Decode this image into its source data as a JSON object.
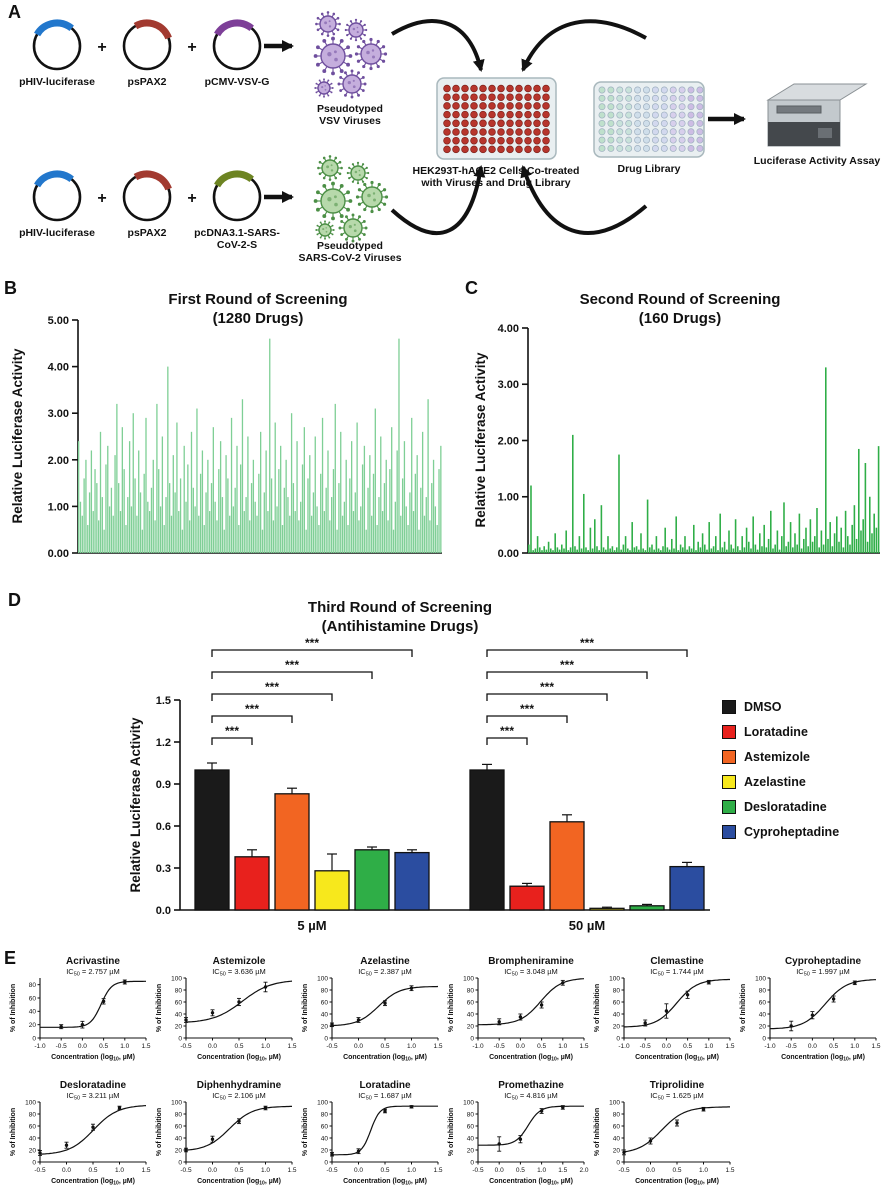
{
  "panels": {
    "a": "A",
    "b": "B",
    "c": "C",
    "d": "D",
    "e": "E"
  },
  "panelA": {
    "plasmid_hiv": "pHIV-luciferase",
    "plasmid_pspax2": "psPAX2",
    "plasmid_vsvg": "pCMV-VSV-G",
    "plasmid_spike_line1": "pcDNA3.1-SARS-",
    "plasmid_spike_line2": "CoV-2-S",
    "plus": "+",
    "vsv_label_line1": "Pseudotyped",
    "vsv_label_line2": "VSV Viruses",
    "sars_label_line1": "Pseudotyped",
    "sars_label_line2": "SARS-CoV-2 Viruses",
    "cells_label_line1": "HEK293T-hACE2 Cells Co-treated",
    "cells_label_line2": "with Viruses and Drug Library",
    "drug_library_label": "Drug Library",
    "assay_label": "Luciferase Activity Assay",
    "colors": {
      "hiv_arc": "#2277cc",
      "pspax2_arc": "#a23a30",
      "vsvg_arc": "#7d3f98",
      "spike_arc": "#6d8422",
      "vsv_virus_fill": "#c5aedd",
      "vsv_virus_stroke": "#6f4f9e",
      "sars_virus_fill": "#b7d9ab",
      "sars_virus_stroke": "#4c8f46",
      "well_fill": "#b7352c",
      "drug_palette": [
        "#bfe0cc",
        "#bfe0cc",
        "#c8e2da",
        "#c8e2da",
        "#cfdeea",
        "#cfdeea",
        "#d2d8ee",
        "#d2d8ee",
        "#d7cfec",
        "#d7cfec",
        "#cdbde4",
        "#cdbde4"
      ]
    }
  },
  "chart_data": [
    {
      "id": "first-round-screening",
      "type": "bar",
      "title": "First Round of Screening",
      "subtitle": "(1280 Drugs)",
      "ylabel": "Relative Luciferase Activity",
      "ylim": [
        0,
        5
      ],
      "yticks": [
        "0.00",
        "1.00",
        "2.00",
        "3.00",
        "4.00",
        "5.00"
      ],
      "bar_color": "#7fcf96",
      "n_drugs": 1280,
      "values": [
        2.4,
        1.1,
        0.8,
        1.6,
        2.0,
        0.6,
        1.3,
        2.2,
        0.9,
        1.8,
        1.5,
        0.7,
        2.6,
        1.2,
        0.5,
        1.9,
        2.3,
        1.0,
        1.4,
        0.8,
        2.1,
        3.2,
        1.5,
        0.9,
        2.7,
        1.8,
        0.6,
        1.2,
        2.4,
        1.0,
        3.0,
        1.6,
        0.8,
        2.2,
        1.3,
        0.5,
        1.7,
        2.9,
        1.1,
        0.9,
        1.4,
        2.0,
        0.7,
        3.2,
        1.8,
        1.0,
        2.5,
        0.6,
        1.2,
        4.0,
        1.5,
        0.8,
        2.1,
        1.3,
        2.8,
        0.9,
        1.6,
        0.5,
        2.3,
        1.1,
        1.9,
        0.7,
        2.6,
        1.4,
        1.0,
        3.1,
        0.8,
        1.7,
        2.2,
        0.6,
        1.3,
        2.0,
        0.9,
        1.5,
        2.7,
        1.1,
        0.7,
        1.8,
        2.4,
        1.2,
        0.5,
        2.1,
        1.6,
        0.8,
        2.9,
        1.0,
        1.4,
        2.3,
        0.6,
        1.9,
        3.3,
        0.9,
        1.2,
        2.5,
        0.7,
        1.5,
        2.0,
        1.1,
        0.8,
        1.7,
        2.6,
        0.5,
        1.3,
        2.2,
        0.9,
        4.6,
        1.6,
        0.7,
        2.8,
        1.0,
        1.8,
        2.3,
        0.6,
        1.4,
        2.0,
        1.2,
        0.8,
        3.0,
        1.5,
        0.9,
        2.4,
        0.7,
        1.1,
        1.9,
        2.7,
        0.5,
        1.6,
        2.1,
        0.8,
        1.3,
        2.5,
        1.0,
        0.6,
        1.7,
        2.9,
        0.9,
        1.4,
        2.2,
        0.7,
        1.2,
        1.8,
        3.2,
        0.5,
        1.5,
        2.6,
        0.8,
        1.1,
        2.0,
        0.6,
        1.6,
        2.4,
        0.9,
        1.3,
        2.8,
        0.7,
        1.0,
        1.9,
        2.3,
        0.5,
        1.4,
        2.1,
        0.8,
        1.7,
        3.1,
        0.6,
        1.2,
        2.5,
        0.9,
        1.5,
        2.0,
        0.7,
        1.8,
        2.7,
        0.5,
        1.1,
        2.2,
        4.6,
        0.8,
        1.6,
        2.4,
        1.0,
        0.6,
        1.3,
        2.9,
        0.9,
        1.7,
        2.1,
        0.5,
        1.4,
        2.6,
        0.8,
        1.2,
        3.3,
        0.7,
        1.5,
        2.0,
        1.0,
        0.6,
        1.8,
        2.3
      ]
    },
    {
      "id": "second-round-screening",
      "type": "bar",
      "title": "Second Round of Screening",
      "subtitle": "(160 Drugs)",
      "ylabel": "Relative Luciferase Activity",
      "ylim": [
        0,
        4
      ],
      "yticks": [
        "0.00",
        "1.00",
        "2.00",
        "3.00",
        "4.00"
      ],
      "bar_color": "#2fae47",
      "n_drugs": 160,
      "values": [
        0.15,
        1.2,
        0.05,
        0.08,
        0.3,
        0.1,
        0.05,
        0.12,
        0.06,
        0.2,
        0.08,
        0.05,
        0.35,
        0.1,
        0.06,
        0.15,
        0.08,
        0.4,
        0.05,
        0.1,
        2.1,
        0.12,
        0.06,
        0.3,
        0.08,
        1.05,
        0.1,
        0.05,
        0.45,
        0.08,
        0.6,
        0.12,
        0.05,
        0.85,
        0.1,
        0.06,
        0.3,
        0.08,
        0.12,
        0.05,
        0.1,
        1.75,
        0.06,
        0.15,
        0.3,
        0.08,
        0.05,
        0.55,
        0.1,
        0.12,
        0.06,
        0.35,
        0.08,
        0.05,
        0.95,
        0.1,
        0.15,
        0.06,
        0.3,
        0.08,
        0.05,
        0.12,
        0.45,
        0.1,
        0.06,
        0.25,
        0.08,
        0.65,
        0.05,
        0.15,
        0.1,
        0.3,
        0.06,
        0.12,
        0.08,
        0.5,
        0.05,
        0.2,
        0.1,
        0.35,
        0.15,
        0.06,
        0.55,
        0.08,
        0.12,
        0.3,
        0.05,
        0.7,
        0.1,
        0.2,
        0.06,
        0.4,
        0.15,
        0.08,
        0.6,
        0.12,
        0.05,
        0.3,
        0.1,
        0.45,
        0.2,
        0.08,
        0.65,
        0.15,
        0.06,
        0.35,
        0.12,
        0.5,
        0.1,
        0.25,
        0.75,
        0.08,
        0.15,
        0.4,
        0.06,
        0.3,
        0.9,
        0.12,
        0.2,
        0.55,
        0.1,
        0.35,
        0.15,
        0.7,
        0.08,
        0.25,
        0.45,
        0.12,
        0.6,
        0.2,
        0.3,
        0.8,
        0.1,
        0.4,
        0.15,
        3.3,
        0.25,
        0.55,
        0.12,
        0.35,
        0.65,
        0.2,
        0.45,
        0.1,
        0.75,
        0.3,
        0.15,
        0.5,
        0.85,
        0.25,
        1.85,
        0.4,
        0.6,
        1.6,
        0.2,
        1.0,
        0.35,
        0.7,
        0.45,
        1.9
      ]
    },
    {
      "id": "third-round-screening",
      "type": "grouped-bar",
      "title": "Third Round of Screening",
      "subtitle": "(Antihistamine Drugs)",
      "ylabel": "Relative Luciferase Activity",
      "ylim": [
        0,
        1.5
      ],
      "yticks": [
        "0.0",
        "0.3",
        "0.6",
        "0.9",
        "1.2",
        "1.5"
      ],
      "groups": [
        "5 µM",
        "50 µM"
      ],
      "significance_label": "***",
      "series": [
        {
          "name": "DMSO",
          "color": "#1a1a1a",
          "values": [
            1.0,
            1.0
          ],
          "errors": [
            0.05,
            0.04
          ]
        },
        {
          "name": "Loratadine",
          "color": "#e8211d",
          "values": [
            0.38,
            0.17
          ],
          "errors": [
            0.05,
            0.02
          ]
        },
        {
          "name": "Astemizole",
          "color": "#f26522",
          "values": [
            0.83,
            0.63
          ],
          "errors": [
            0.04,
            0.05
          ]
        },
        {
          "name": "Azelastine",
          "color": "#f7e81c",
          "values": [
            0.28,
            0.012
          ],
          "errors": [
            0.12,
            0.008
          ]
        },
        {
          "name": "Desloratadine",
          "color": "#2fae47",
          "values": [
            0.43,
            0.03
          ],
          "errors": [
            0.02,
            0.01
          ]
        },
        {
          "name": "Cyproheptadine",
          "color": "#2b4da0",
          "values": [
            0.41,
            0.31
          ],
          "errors": [
            0.02,
            0.03
          ]
        }
      ]
    },
    {
      "id": "dose-response-curves",
      "type": "line",
      "xlabel_pre": "Concentration (log",
      "xlabel_sub": "10",
      "xlabel_post": ", µM)",
      "ylabel": "% of Inhibition",
      "ic50_prefix": "IC",
      "ic50_sub": "50",
      "plots": [
        {
          "name": "Acrivastine",
          "ic50": "2.757 µM",
          "xlim": [
            -1.0,
            1.5
          ],
          "xticks": [
            "-1.0",
            "-0.5",
            "0.0",
            "0.5",
            "1.0",
            "1.5"
          ],
          "ylim": [
            0,
            90
          ],
          "yticks": [
            "0",
            "20",
            "40",
            "60",
            "80"
          ],
          "fit": {
            "bottom": 16,
            "top": 85,
            "logIC50": 0.44,
            "hill": 3.5
          },
          "points": [
            [
              -0.5,
              17,
              3
            ],
            [
              0,
              20,
              5
            ],
            [
              0.5,
              55,
              4
            ],
            [
              1,
              84,
              3
            ]
          ]
        },
        {
          "name": "Astemizole",
          "ic50": "3.636 µM",
          "xlim": [
            -0.5,
            1.5
          ],
          "xticks": [
            "-0.5",
            "0.0",
            "0.5",
            "1.0",
            "1.5"
          ],
          "ylim": [
            0,
            100
          ],
          "yticks": [
            "0",
            "20",
            "40",
            "60",
            "80",
            "100"
          ],
          "fit": {
            "bottom": 25,
            "top": 97,
            "logIC50": 0.56,
            "hill": 1.6
          },
          "points": [
            [
              -0.5,
              30,
              4
            ],
            [
              0,
              42,
              5
            ],
            [
              0.5,
              60,
              6
            ],
            [
              1,
              85,
              8
            ]
          ]
        },
        {
          "name": "Azelastine",
          "ic50": "2.387 µM",
          "xlim": [
            -0.5,
            1.5
          ],
          "xticks": [
            "-0.5",
            "0.0",
            "0.5",
            "1.0",
            "1.5"
          ],
          "ylim": [
            0,
            100
          ],
          "yticks": [
            "0",
            "20",
            "40",
            "60",
            "80",
            "100"
          ],
          "fit": {
            "bottom": 20,
            "top": 86,
            "logIC50": 0.38,
            "hill": 2.2
          },
          "points": [
            [
              -0.5,
              22,
              3
            ],
            [
              0,
              30,
              4
            ],
            [
              0.5,
              58,
              4
            ],
            [
              1,
              83,
              4
            ]
          ]
        },
        {
          "name": "Brompheniramine",
          "ic50": "3.048 µM",
          "xlim": [
            -1.0,
            1.5
          ],
          "xticks": [
            "-1.0",
            "-0.5",
            "0.0",
            "0.5",
            "1.0",
            "1.5"
          ],
          "ylim": [
            0,
            100
          ],
          "yticks": [
            "0",
            "20",
            "40",
            "60",
            "80",
            "100"
          ],
          "fit": {
            "bottom": 22,
            "top": 100,
            "logIC50": 0.48,
            "hill": 1.8
          },
          "points": [
            [
              -0.5,
              27,
              5
            ],
            [
              0,
              35,
              5
            ],
            [
              0.5,
              55,
              5
            ],
            [
              1,
              92,
              4
            ]
          ]
        },
        {
          "name": "Clemastine",
          "ic50": "1.744 µM",
          "xlim": [
            -1.0,
            1.5
          ],
          "xticks": [
            "-1.0",
            "-0.5",
            "0.0",
            "0.5",
            "1.0",
            "1.5"
          ],
          "ylim": [
            0,
            100
          ],
          "yticks": [
            "0",
            "20",
            "40",
            "60",
            "80",
            "100"
          ],
          "fit": {
            "bottom": 18,
            "top": 98,
            "logIC50": 0.24,
            "hill": 1.8
          },
          "points": [
            [
              -0.5,
              25,
              5
            ],
            [
              0,
              45,
              12
            ],
            [
              0.5,
              72,
              6
            ],
            [
              1,
              93,
              3
            ]
          ]
        },
        {
          "name": "Cyproheptadine",
          "ic50": "1.997 µM",
          "xlim": [
            -1.0,
            1.5
          ],
          "xticks": [
            "-1.0",
            "-0.5",
            "0.0",
            "0.5",
            "1.0",
            "1.5"
          ],
          "ylim": [
            0,
            100
          ],
          "yticks": [
            "0",
            "20",
            "40",
            "60",
            "80",
            "100"
          ],
          "fit": {
            "bottom": 15,
            "top": 98,
            "logIC50": 0.3,
            "hill": 1.7
          },
          "points": [
            [
              -0.5,
              20,
              8
            ],
            [
              0,
              38,
              6
            ],
            [
              0.5,
              65,
              5
            ],
            [
              1,
              92,
              3
            ]
          ]
        },
        {
          "name": "Desloratadine",
          "ic50": "3.211 µM",
          "xlim": [
            -0.5,
            1.5
          ],
          "xticks": [
            "-0.5",
            "0.0",
            "0.5",
            "1.0",
            "1.5"
          ],
          "ylim": [
            0,
            100
          ],
          "yticks": [
            "0",
            "20",
            "40",
            "60",
            "80",
            "100"
          ],
          "fit": {
            "bottom": 12,
            "top": 95,
            "logIC50": 0.51,
            "hill": 1.9
          },
          "points": [
            [
              -0.5,
              15,
              4
            ],
            [
              0,
              28,
              5
            ],
            [
              0.5,
              58,
              5
            ],
            [
              1,
              90,
              3
            ]
          ]
        },
        {
          "name": "Diphenhydramine",
          "ic50": "2.106 µM",
          "xlim": [
            -0.5,
            1.5
          ],
          "xticks": [
            "-0.5",
            "0.0",
            "0.5",
            "1.0",
            "1.5"
          ],
          "ylim": [
            0,
            100
          ],
          "yticks": [
            "0",
            "20",
            "40",
            "60",
            "80",
            "100"
          ],
          "fit": {
            "bottom": 18,
            "top": 93,
            "logIC50": 0.32,
            "hill": 2.0
          },
          "points": [
            [
              -0.5,
              20,
              3
            ],
            [
              0,
              38,
              5
            ],
            [
              0.5,
              68,
              4
            ],
            [
              1,
              90,
              3
            ]
          ]
        },
        {
          "name": "Loratadine",
          "ic50": "1.687 µM",
          "xlim": [
            -0.5,
            1.5
          ],
          "xticks": [
            "-0.5",
            "0.0",
            "0.5",
            "1.0",
            "1.5"
          ],
          "ylim": [
            0,
            100
          ],
          "yticks": [
            "0",
            "20",
            "40",
            "60",
            "80",
            "100"
          ],
          "fit": {
            "bottom": 12,
            "top": 93,
            "logIC50": 0.23,
            "hill": 5.0
          },
          "points": [
            [
              -0.5,
              13,
              3
            ],
            [
              0,
              18,
              4
            ],
            [
              0.5,
              85,
              3
            ],
            [
              1,
              92,
              2
            ]
          ]
        },
        {
          "name": "Promethazine",
          "ic50": "4.816 µM",
          "xlim": [
            -0.5,
            2.0
          ],
          "xticks": [
            "-0.5",
            "0.0",
            "0.5",
            "1.0",
            "1.5",
            "2.0"
          ],
          "ylim": [
            0,
            100
          ],
          "yticks": [
            "0",
            "20",
            "40",
            "60",
            "80",
            "100"
          ],
          "fit": {
            "bottom": 28,
            "top": 93,
            "logIC50": 0.68,
            "hill": 3.0
          },
          "points": [
            [
              0,
              30,
              12
            ],
            [
              0.5,
              38,
              6
            ],
            [
              1,
              85,
              4
            ],
            [
              1.5,
              91,
              3
            ]
          ]
        },
        {
          "name": "Triprolidine",
          "ic50": "1.625 µM",
          "xlim": [
            -0.5,
            1.5
          ],
          "xticks": [
            "-0.5",
            "0.0",
            "0.5",
            "1.0",
            "1.5"
          ],
          "ylim": [
            0,
            100
          ],
          "yticks": [
            "0",
            "20",
            "40",
            "60",
            "80",
            "100"
          ],
          "fit": {
            "bottom": 14,
            "top": 92,
            "logIC50": 0.21,
            "hill": 2.0
          },
          "points": [
            [
              -0.5,
              16,
              4
            ],
            [
              0,
              35,
              5
            ],
            [
              0.5,
              65,
              5
            ],
            [
              1,
              88,
              3
            ]
          ]
        }
      ]
    }
  ]
}
